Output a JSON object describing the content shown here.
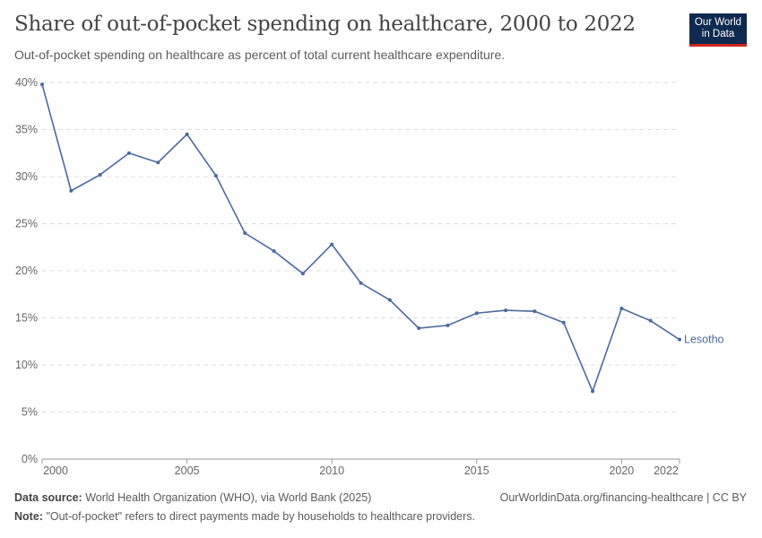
{
  "title": "Share of out-of-pocket spending on healthcare, 2000 to 2022",
  "subtitle": "Out-of-pocket spending on healthcare as percent of total current healthcare expenditure.",
  "logo": {
    "line1": "Our World",
    "line2": "in Data"
  },
  "footer": {
    "source_label": "Data source:",
    "source": "World Health Organization (WHO), via World Bank (2025)",
    "url": "OurWorldinData.org/financing-healthcare | CC BY",
    "note_label": "Note:",
    "note": "\"Out-of-pocket\" refers to direct payments made by households to healthcare providers."
  },
  "chart_data": {
    "type": "line",
    "title": "Share of out-of-pocket spending on healthcare, 2000 to 2022",
    "x": [
      2000,
      2001,
      2002,
      2003,
      2004,
      2005,
      2006,
      2007,
      2008,
      2009,
      2010,
      2011,
      2012,
      2013,
      2014,
      2015,
      2016,
      2017,
      2018,
      2019,
      2020,
      2021,
      2022
    ],
    "series": [
      {
        "name": "Lesotho",
        "color": "#4c6a9c",
        "values": [
          39.8,
          28.5,
          30.2,
          32.5,
          31.5,
          34.5,
          30.1,
          24.0,
          22.1,
          19.7,
          22.8,
          18.7,
          16.9,
          13.9,
          14.2,
          15.5,
          15.8,
          15.7,
          14.5,
          7.2,
          16.0,
          14.7,
          12.7
        ]
      }
    ],
    "xticks": [
      2000,
      2005,
      2010,
      2015,
      2020,
      2022
    ],
    "xtick_labels": [
      "2000",
      "2005",
      "2010",
      "2015",
      "2020",
      "2022"
    ],
    "yticks": [
      0,
      5,
      10,
      15,
      20,
      25,
      30,
      35,
      40
    ],
    "ytick_labels": [
      "0%",
      "5%",
      "10%",
      "15%",
      "20%",
      "25%",
      "30%",
      "35%",
      "40%"
    ],
    "xlim": [
      2000,
      2022
    ],
    "ylim": [
      0,
      40
    ],
    "grid": "horizontal dashed",
    "legend": "inline-right"
  }
}
